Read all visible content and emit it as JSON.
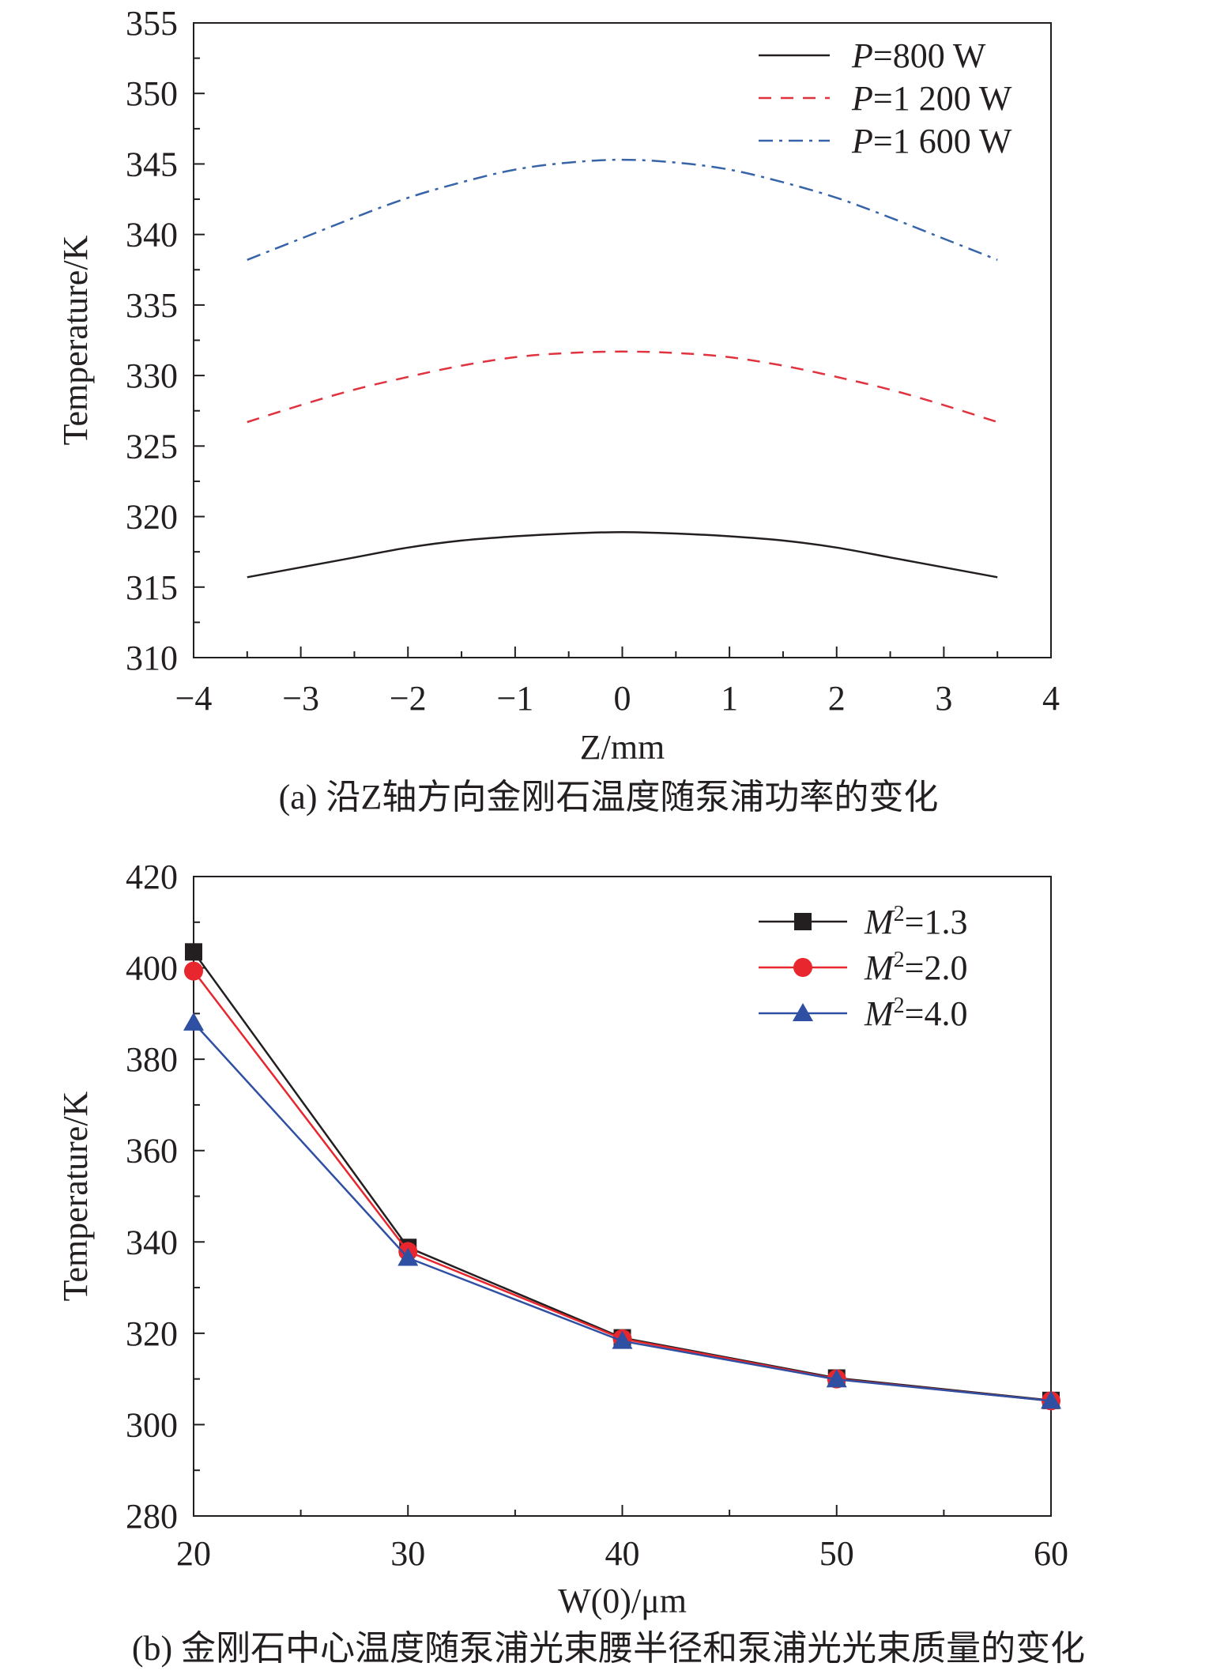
{
  "chart_data": [
    {
      "type": "line",
      "caption": "(a) 沿Z轴方向金刚石温度随泵浦功率的变化",
      "xlabel": "Z/mm",
      "ylabel": "Temperature/K",
      "xlim": [
        -4,
        4
      ],
      "ylim": [
        310,
        355
      ],
      "xticks": [
        -4,
        -3,
        -2,
        -1,
        0,
        1,
        2,
        3,
        4
      ],
      "xtick_labels": [
        "−4",
        "−3",
        "−2",
        "−1",
        "0",
        "1",
        "2",
        "3",
        "4"
      ],
      "yticks": [
        310,
        315,
        320,
        325,
        330,
        335,
        340,
        345,
        350,
        355
      ],
      "ytick_labels": [
        "310",
        "315",
        "320",
        "325",
        "330",
        "335",
        "340",
        "345",
        "350",
        "355"
      ],
      "legend_position": "top-right",
      "series": [
        {
          "name": "P=800 W",
          "label_var": "P",
          "label_rest": "=800 W",
          "color": "#231f20",
          "style": "solid",
          "x": [
            -3.5,
            -3.0,
            -2.5,
            -2.0,
            -1.5,
            -1.0,
            -0.5,
            0.0,
            0.5,
            1.0,
            1.5,
            2.0,
            2.5,
            3.0,
            3.5
          ],
          "y": [
            315.7,
            316.4,
            317.1,
            317.8,
            318.3,
            318.6,
            318.8,
            318.9,
            318.8,
            318.6,
            318.3,
            317.8,
            317.1,
            316.4,
            315.7
          ]
        },
        {
          "name": "P=1 200 W",
          "label_var": "P",
          "label_rest": "=1 200 W",
          "color": "#e0333f",
          "style": "dashed",
          "x": [
            -3.5,
            -3.0,
            -2.5,
            -2.0,
            -1.5,
            -1.0,
            -0.5,
            0.0,
            0.5,
            1.0,
            1.5,
            2.0,
            2.5,
            3.0,
            3.5
          ],
          "y": [
            326.7,
            327.9,
            329.0,
            329.9,
            330.7,
            331.3,
            331.6,
            331.7,
            331.6,
            331.3,
            330.7,
            329.9,
            329.0,
            327.9,
            326.7
          ]
        },
        {
          "name": "P=1 600 W",
          "label_var": "P",
          "label_rest": "=1 600 W",
          "color": "#3764a8",
          "style": "dashdot",
          "x": [
            -3.5,
            -3.0,
            -2.5,
            -2.0,
            -1.5,
            -1.0,
            -0.5,
            0.0,
            0.5,
            1.0,
            1.5,
            2.0,
            2.5,
            3.0,
            3.5
          ],
          "y": [
            338.2,
            339.7,
            341.2,
            342.6,
            343.7,
            344.6,
            345.1,
            345.3,
            345.1,
            344.6,
            343.7,
            342.6,
            341.2,
            339.7,
            338.2
          ]
        }
      ]
    },
    {
      "type": "line",
      "caption": "(b) 金刚石中心温度随泵浦光束腰半径和泵浦光光束质量的变化",
      "xlabel": "W(0)/μm",
      "ylabel": "Temperature/K",
      "xlim": [
        20,
        60
      ],
      "ylim": [
        280,
        420
      ],
      "xticks": [
        20,
        30,
        40,
        50,
        60
      ],
      "xtick_labels": [
        "20",
        "30",
        "40",
        "50",
        "60"
      ],
      "yticks": [
        280,
        300,
        320,
        340,
        360,
        380,
        400,
        420
      ],
      "ytick_labels": [
        "280",
        "300",
        "320",
        "340",
        "360",
        "380",
        "400",
        "420"
      ],
      "legend_position": "top-right",
      "x": [
        20,
        30,
        40,
        50,
        60
      ],
      "series": [
        {
          "name": "M²=1.3",
          "label_var": "M",
          "label_sup": "2",
          "label_rest": "=1.3",
          "color": "#231f20",
          "marker": "square",
          "values": [
            403.5,
            338.8,
            319.0,
            310.2,
            305.3
          ]
        },
        {
          "name": "M²=2.0",
          "label_var": "M",
          "label_sup": "2",
          "label_rest": "=2.0",
          "color": "#e8262e",
          "marker": "circle",
          "values": [
            399.3,
            337.9,
            318.8,
            310.0,
            305.2
          ]
        },
        {
          "name": "M²=4.0",
          "label_var": "M",
          "label_sup": "2",
          "label_rest": "=4.0",
          "color": "#2f4fa2",
          "marker": "triangle",
          "values": [
            388.0,
            336.5,
            318.3,
            309.9,
            305.2
          ]
        }
      ]
    }
  ]
}
